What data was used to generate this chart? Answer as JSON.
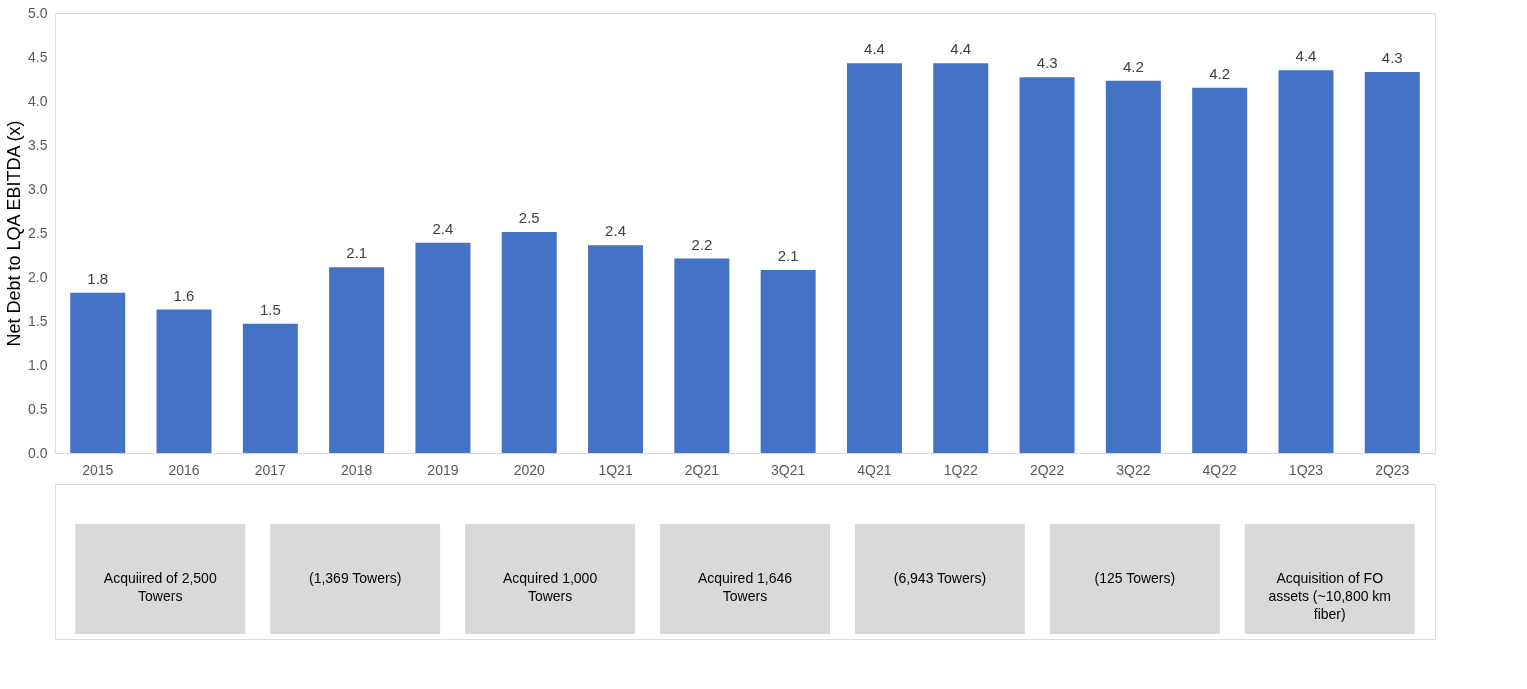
{
  "chart_data": {
    "type": "bar",
    "ylabel": "Net Debt to LQA EBITDA (x)",
    "categories": [
      "2015",
      "2016",
      "2017",
      "2018",
      "2019",
      "2020",
      "1Q21",
      "2Q21",
      "3Q21",
      "4Q21",
      "1Q22",
      "2Q22",
      "3Q22",
      "4Q22",
      "1Q23",
      "2Q23"
    ],
    "values": [
      1.82,
      1.63,
      1.47,
      2.11,
      2.39,
      2.51,
      2.36,
      2.21,
      2.08,
      4.43,
      4.43,
      4.27,
      4.23,
      4.15,
      4.35,
      4.33
    ],
    "value_labels": [
      "1.8",
      "1.6",
      "1.5",
      "2.1",
      "2.4",
      "2.5",
      "2.4",
      "2.2",
      "2.1",
      "4.4",
      "4.4",
      "4.3",
      "4.2",
      "4.2",
      "4.4",
      "4.3"
    ],
    "color": "#4472c4",
    "ylim": [
      0,
      5
    ],
    "yticks": [
      {
        "value": 0,
        "label": "0.0"
      },
      0.5,
      {
        "value": 1,
        "label": "1.0"
      },
      1.5,
      {
        "value": 2,
        "label": "2.0"
      },
      2.5,
      {
        "value": 3,
        "label": "3.0"
      },
      3.5,
      {
        "value": 4,
        "label": "4.0"
      },
      4.5,
      {
        "value": 5,
        "label": "5.0"
      }
    ],
    "grid": false,
    "annotations": [
      "Acquiired of 2,500 Towers",
      "(1,369 Towers)",
      "Acquired 1,000 Towers",
      "Acquired 1,646 Towers",
      "(6,943 Towers)",
      "(125 Towers)",
      "Acquisition of FO assets (~10,800 km fiber)"
    ]
  }
}
